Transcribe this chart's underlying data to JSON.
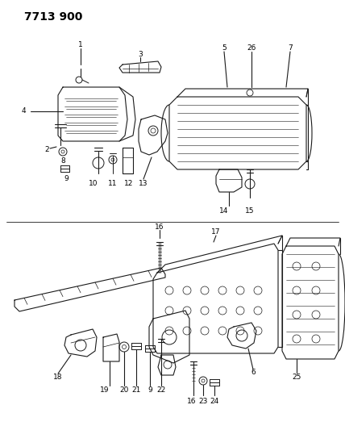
{
  "title": "7713 900",
  "bg_color": "#ffffff",
  "line_color": "#1a1a1a",
  "title_fontsize": 10,
  "label_fontsize": 6.5,
  "figsize": [
    4.28,
    5.33
  ],
  "dpi": 100
}
